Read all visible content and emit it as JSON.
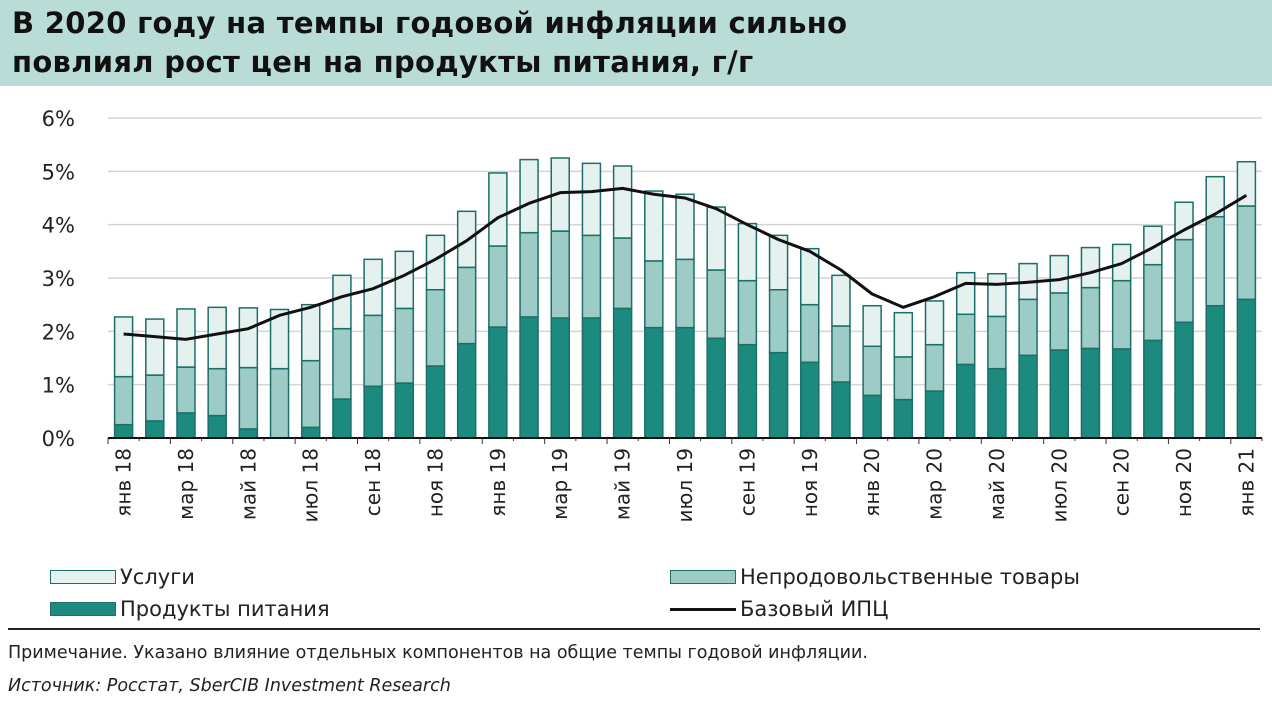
{
  "title": {
    "line1": "В 2020 году на темпы годовой инфляции сильно",
    "line2": "повлиял рост цен на продукты питания, г/г"
  },
  "chart_data": {
    "type": "bar",
    "stacked": true,
    "categories": [
      "янв 18",
      "фев 18",
      "мар 18",
      "апр 18",
      "май 18",
      "июн 18",
      "июл 18",
      "авг 18",
      "сен 18",
      "окт 18",
      "ноя 18",
      "дек 18",
      "янв 19",
      "фев 19",
      "мар 19",
      "апр 19",
      "май 19",
      "июн 19",
      "июл 19",
      "авг 19",
      "сен 19",
      "окт 19",
      "ноя 19",
      "дек 19",
      "янв 20",
      "фев 20",
      "мар 20",
      "апр 20",
      "май 20",
      "июн 20",
      "июл 20",
      "авг 20",
      "сен 20",
      "окт 20",
      "ноя 20",
      "дек 20",
      "янв 21"
    ],
    "series": [
      {
        "name": "Продукты питания",
        "color": "#1c8a7e",
        "values": [
          0.25,
          0.32,
          0.47,
          0.42,
          0.17,
          0,
          0.2,
          0.73,
          0.97,
          1.03,
          1.35,
          1.77,
          2.08,
          2.27,
          2.25,
          2.25,
          2.43,
          2.07,
          2.07,
          1.87,
          1.75,
          1.6,
          1.42,
          1.05,
          0.8,
          0.72,
          0.88,
          1.38,
          1.3,
          1.55,
          1.65,
          1.68,
          1.67,
          1.83,
          2.17,
          2.48,
          2.6
        ]
      },
      {
        "name": "Непродовольственные товары",
        "color": "#9dcbc5",
        "values": [
          0.9,
          0.86,
          0.86,
          0.88,
          1.15,
          1.3,
          1.25,
          1.32,
          1.33,
          1.4,
          1.43,
          1.43,
          1.52,
          1.58,
          1.63,
          1.55,
          1.32,
          1.25,
          1.28,
          1.28,
          1.2,
          1.18,
          1.08,
          1.05,
          0.92,
          0.8,
          0.87,
          0.94,
          0.98,
          1.05,
          1.07,
          1.14,
          1.28,
          1.42,
          1.55,
          1.67,
          1.75
        ]
      },
      {
        "name": "Услуги",
        "color": "#e4f1ef",
        "values": [
          1.12,
          1.05,
          1.09,
          1.15,
          1.12,
          1.11,
          1.05,
          1.0,
          1.05,
          1.07,
          1.02,
          1.05,
          1.37,
          1.37,
          1.37,
          1.35,
          1.35,
          1.31,
          1.22,
          1.18,
          1.07,
          1.02,
          1.05,
          0.95,
          0.76,
          0.83,
          0.82,
          0.78,
          0.8,
          0.67,
          0.7,
          0.75,
          0.68,
          0.72,
          0.7,
          0.75,
          0.83
        ]
      },
      {
        "name": "Базовый ИПЦ",
        "type": "line",
        "color": "#111111",
        "values": [
          1.95,
          1.9,
          1.85,
          1.95,
          2.05,
          2.3,
          2.45,
          2.65,
          2.8,
          3.05,
          3.35,
          3.7,
          4.13,
          4.4,
          4.6,
          4.62,
          4.68,
          4.57,
          4.5,
          4.3,
          4.0,
          3.72,
          3.5,
          3.15,
          2.7,
          2.45,
          2.65,
          2.9,
          2.88,
          2.92,
          2.97,
          3.1,
          3.27,
          3.57,
          3.9,
          4.2,
          4.55
        ]
      }
    ],
    "yticks": [
      "0%",
      "1%",
      "2%",
      "3%",
      "4%",
      "5%",
      "6%"
    ],
    "ylim": [
      0,
      6
    ],
    "grid": true,
    "xlabel": "",
    "ylabel": "",
    "legend": {
      "services": "Услуги",
      "nonfood": "Непродовольственные товары",
      "food": "Продукты питания",
      "core": "Базовый ИПЦ"
    },
    "legend_placement": "bottom"
  },
  "footer": {
    "note": "Примечание. Указано влияние отдельных компонентов на общие темпы годовой инфляции.",
    "source": "Источник: Росстат, SberCIB Investment Research"
  }
}
